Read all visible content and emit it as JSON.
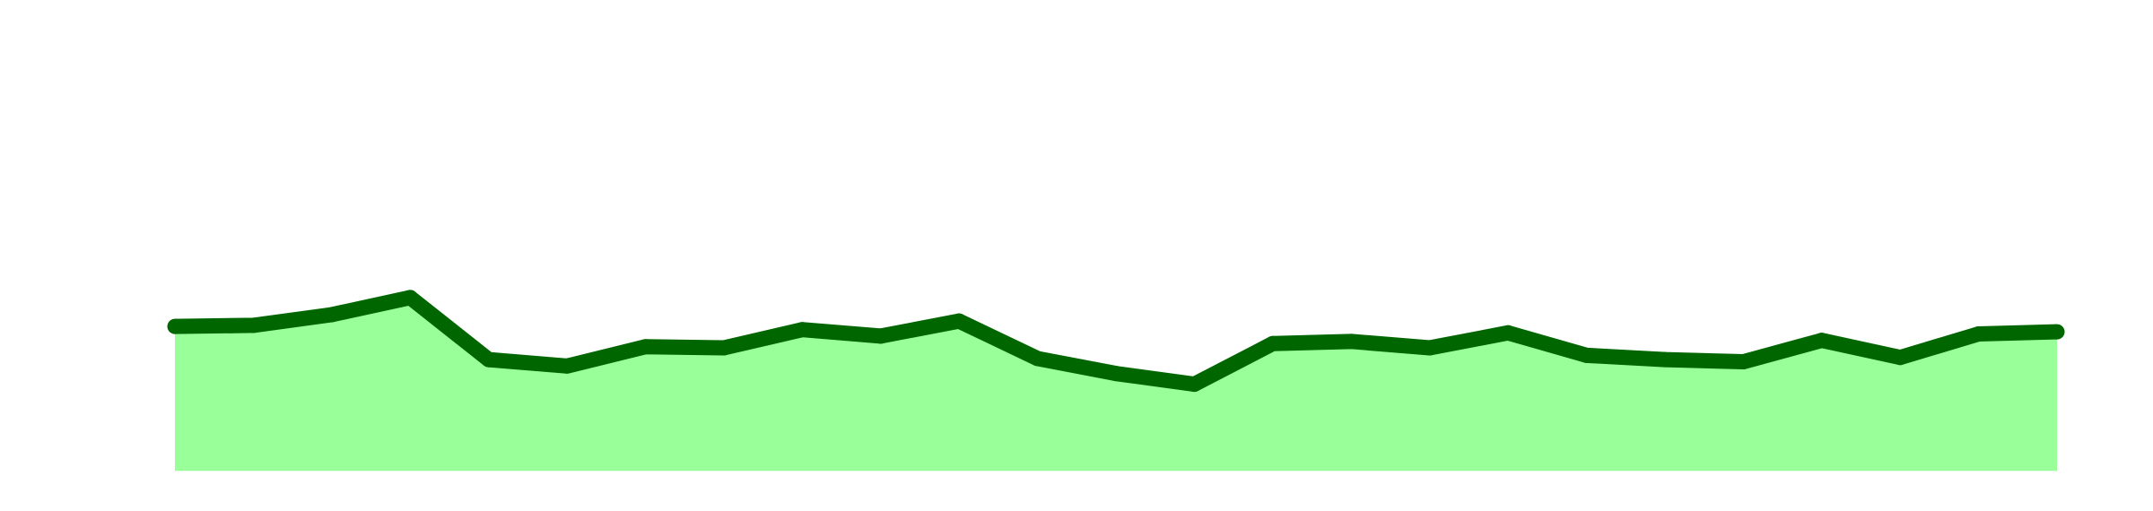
{
  "chart_data": {
    "type": "area",
    "x": [
      1,
      2,
      3,
      4,
      5,
      6,
      7,
      8,
      9,
      10,
      11,
      12,
      13,
      14,
      15,
      16,
      17,
      18,
      19,
      20,
      21,
      22,
      23,
      24,
      25
    ],
    "series": [
      {
        "values": [
          13.5,
          13.6,
          14.6,
          16.2,
          10.4,
          9.8,
          11.6,
          11.5,
          13.2,
          12.6,
          14.0,
          10.5,
          9.1,
          8.1,
          11.9,
          12.1,
          11.5,
          12.9,
          10.8,
          10.4,
          10.2,
          12.2,
          10.6,
          12.8,
          13.0
        ],
        "line_color": "#006600",
        "fill_color": "#99ff99"
      }
    ],
    "xlim": [
      1,
      25
    ],
    "ylim": [
      -1.4,
      44
    ],
    "grid": false
  }
}
